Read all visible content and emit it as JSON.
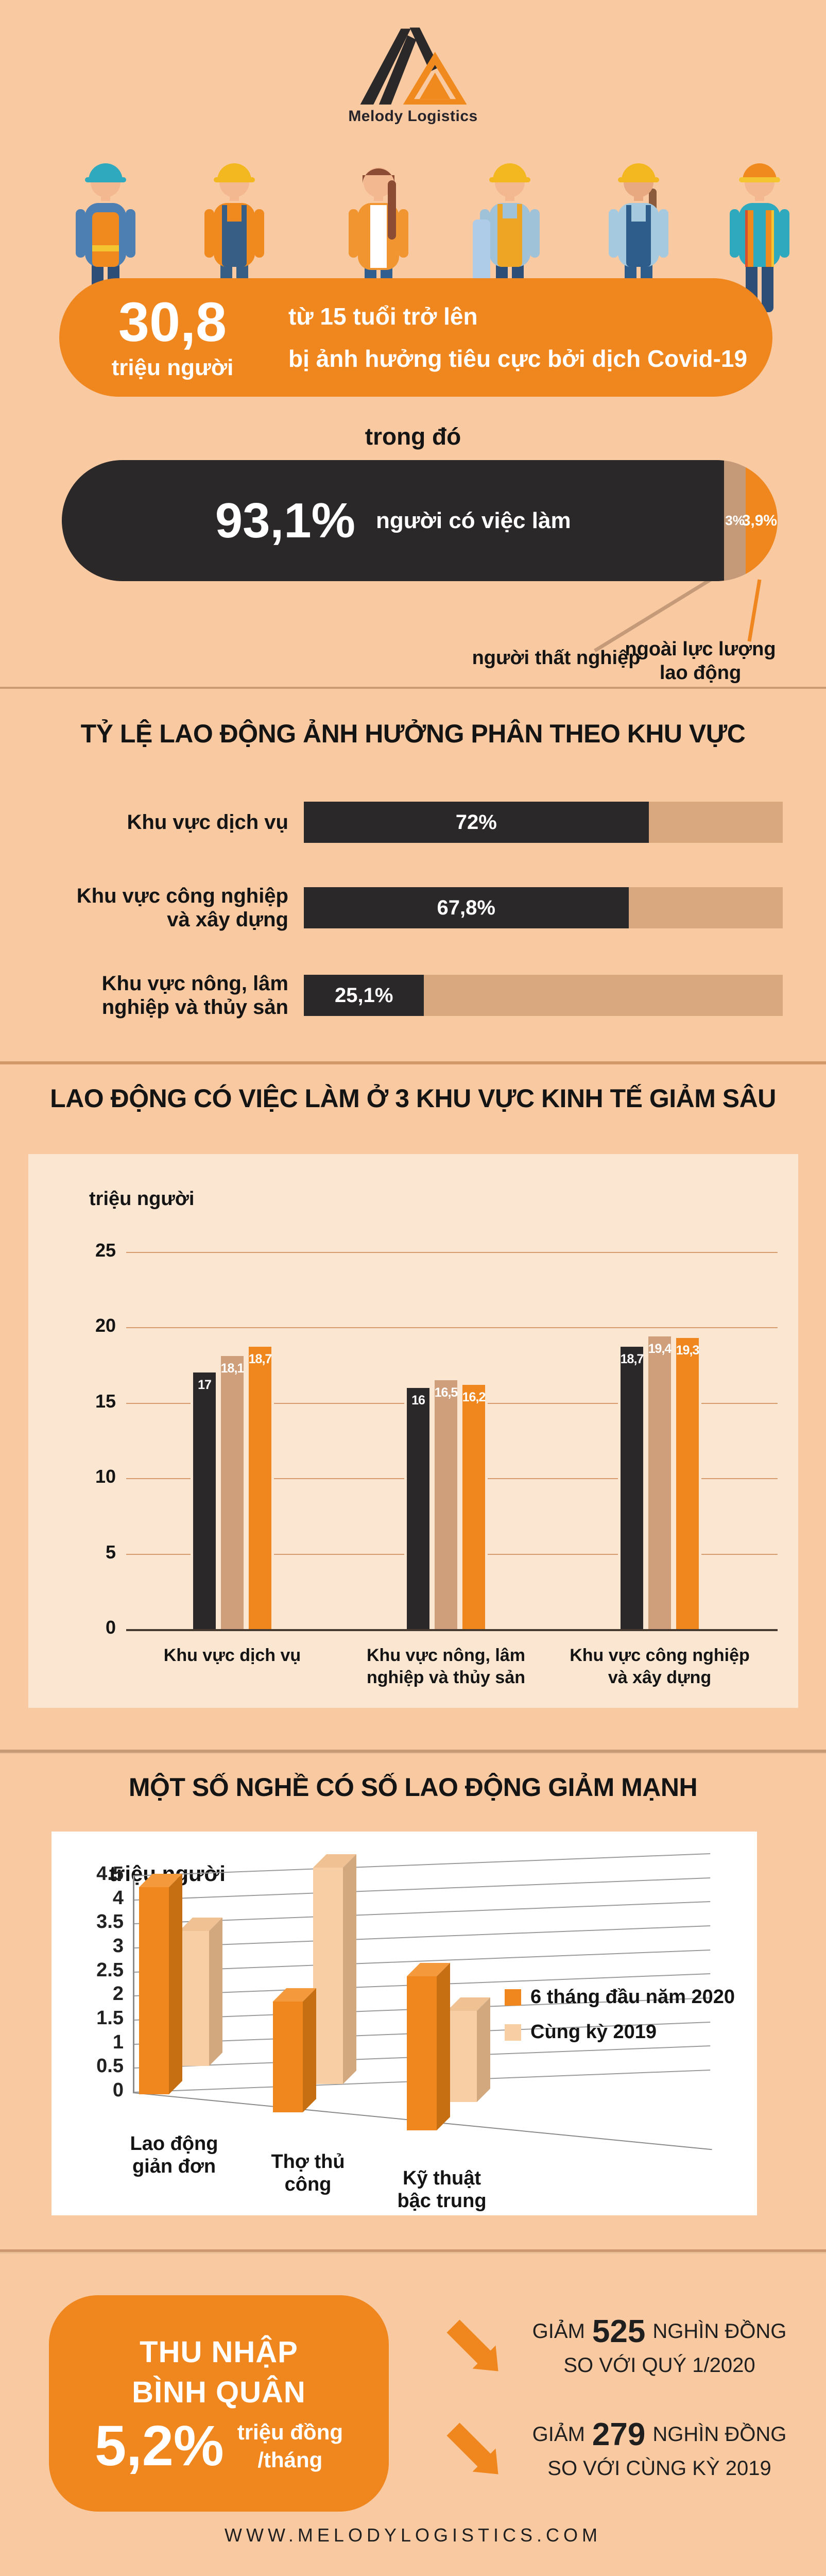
{
  "page": {
    "footer": "WWW.MELODYLOGISTICS.COM"
  },
  "logo": {
    "title": "Melody Logistics"
  },
  "hero": {
    "stat_value": "30,8",
    "stat_unit": "triệu người",
    "desc_line1": "từ 15 tuổi trở lên",
    "desc_line2": "bị ảnh hưởng tiêu cực bởi dịch Covid-19",
    "connector": "trong đó"
  },
  "employment": {
    "main_value": "93,1%",
    "main_label": "người có việc làm",
    "main_pct": 93.1,
    "unemployed_value": "3%",
    "unemployed_pct": 3,
    "outside_value": "3,9%",
    "outside_pct": 3.9,
    "callout_unemployed": "người thất nghiệp",
    "callout_outside": "ngoài lực lượng\nlao động"
  },
  "sector_share": {
    "title": "TỶ LỆ LAO ĐỘNG ẢNH HƯỞNG PHÂN THEO KHU VỰC",
    "rows": [
      {
        "label": "Khu vực dịch vụ",
        "value": "72%",
        "pct": 72
      },
      {
        "label": "Khu vực công nghiệp\nvà xây dựng",
        "value": "67,8%",
        "pct": 67.8
      },
      {
        "label": "Khu vực nông, lâm\nnghiệp và thủy sản",
        "value": "25,1%",
        "pct": 25.1
      }
    ]
  },
  "chart_data": [
    {
      "type": "bar",
      "title": "LAO ĐỘNG CÓ VIỆC LÀM Ở 3 KHU VỰC KINH TẾ GIẢM SÂU",
      "ylabel": "triệu người",
      "ylim": [
        0,
        25
      ],
      "yticks": [
        "25",
        "20",
        "15",
        "10",
        "5",
        "0"
      ],
      "grid": true,
      "legend": false,
      "categories": [
        "Khu vực dịch vụ",
        "Khu vực nông, lâm\nnghiệp và thủy sản",
        "Khu vực công nghiệp\nvà xây dựng"
      ],
      "series": [
        {
          "name": "bar-dark",
          "color": "#2B2829",
          "values": [
            17,
            16,
            18.7
          ],
          "labels": [
            "17",
            "16",
            "18,7"
          ]
        },
        {
          "name": "bar-tan",
          "color": "#CE9F7A",
          "values": [
            18.1,
            16.5,
            19.4
          ],
          "labels": [
            "18,1",
            "16,5",
            "19,4"
          ]
        },
        {
          "name": "bar-orange",
          "color": "#F0861E",
          "values": [
            18.7,
            16.2,
            19.3
          ],
          "labels": [
            "18,7",
            "16,2",
            "19,3"
          ]
        }
      ]
    },
    {
      "type": "bar",
      "style": "3d",
      "title": "MỘT SỐ NGHỀ CÓ SỐ LAO ĐỘNG GIẢM MẠNH",
      "ylabel": "triệu người",
      "ylim": [
        0,
        4.5
      ],
      "yticks": [
        "4.5",
        "4",
        "3.5",
        "3",
        "2.5",
        "2",
        "1.5",
        "1",
        "0.5",
        "0"
      ],
      "grid": true,
      "legend": true,
      "legend_position": "right",
      "categories": [
        "Lao động\ngiản đơn",
        "Thợ thủ\ncông",
        "Kỹ thuật\nbậc trung"
      ],
      "series": [
        {
          "name": "6 tháng đầu năm 2020",
          "color": "#F0861E",
          "values": [
            4.3,
            2.3,
            3.2
          ]
        },
        {
          "name": "Cùng kỳ 2019",
          "color": "#F8CFA4",
          "values": [
            2.8,
            4.5,
            1.9
          ]
        }
      ]
    }
  ],
  "income": {
    "title": "THU NHẬP\nBÌNH QUÂN",
    "value": "5,2%",
    "unit": "triệu đồng\n/tháng",
    "notes": [
      {
        "prefix": "GIẢM",
        "number": "525",
        "suffix": "NGHÌN ĐỒNG",
        "line2": "SO VỚI QUÝ 1/2020"
      },
      {
        "prefix": "GIẢM",
        "number": "279",
        "suffix": "NGHÌN ĐỒNG",
        "line2": "SO VỚI CÙNG KỲ 2019"
      }
    ]
  }
}
